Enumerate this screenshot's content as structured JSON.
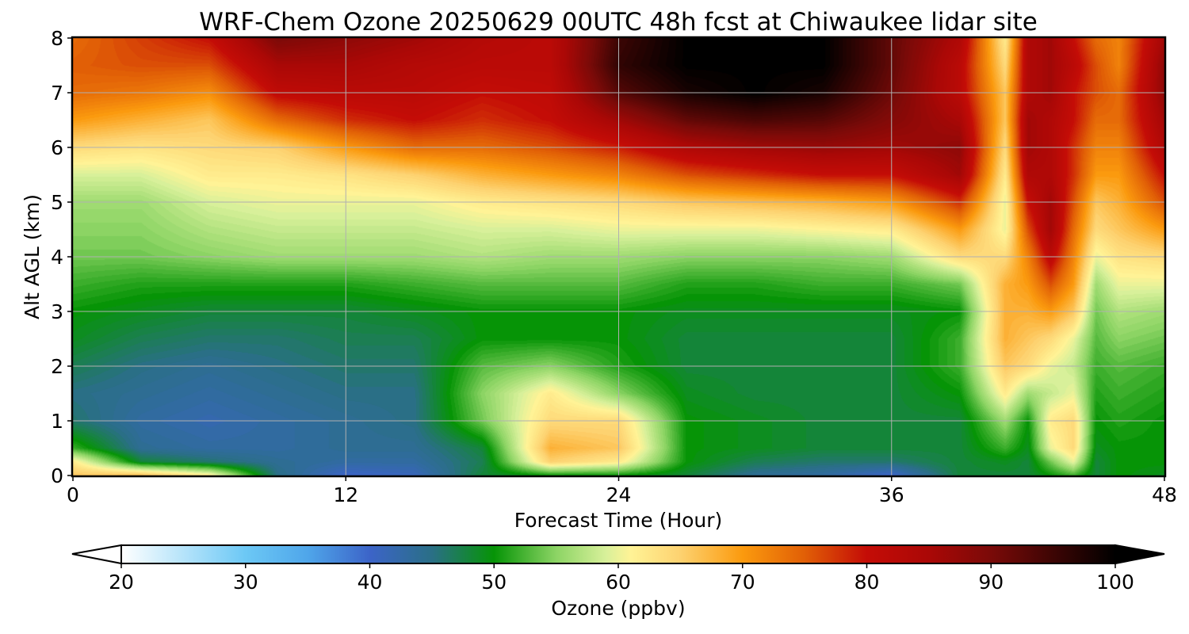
{
  "chart_data": {
    "type": "heatmap",
    "title": "WRF-Chem Ozone  20250629 00UTC 48h fcst at Chiwaukee lidar site",
    "xlabel": "Forecast Time (Hour)",
    "ylabel": "Alt AGL (km)",
    "xlim": [
      0,
      48
    ],
    "ylim": [
      0,
      8
    ],
    "xticks": [
      0,
      12,
      24,
      36,
      48
    ],
    "yticks": [
      0,
      1,
      2,
      3,
      4,
      5,
      6,
      7,
      8
    ],
    "grid": true,
    "x_hours": [
      0,
      3,
      6,
      9,
      12,
      15,
      18,
      21,
      24,
      27,
      30,
      33,
      36,
      39,
      41,
      42,
      43,
      44,
      45,
      46,
      48
    ],
    "z_km": [
      0,
      0.25,
      0.5,
      1,
      1.5,
      2,
      2.5,
      3,
      3.5,
      4,
      4.5,
      5,
      5.5,
      6,
      6.5,
      7,
      7.5,
      8
    ],
    "ozone_ppbv_by_time": [
      [
        66,
        62,
        52,
        46,
        45,
        47,
        49,
        50,
        52,
        54,
        55,
        56,
        59,
        64,
        70,
        74,
        75,
        74
      ],
      [
        67,
        48,
        44,
        43,
        44,
        45,
        47,
        49,
        51,
        54,
        55,
        56,
        59,
        63,
        68,
        73,
        76,
        77
      ],
      [
        62,
        46,
        43,
        42,
        43,
        44,
        46,
        48,
        51,
        55,
        57,
        59,
        62,
        64,
        66,
        71,
        76,
        80
      ],
      [
        45,
        44,
        43,
        43,
        44,
        45,
        46,
        48,
        51,
        56,
        58,
        60,
        62,
        65,
        74,
        81,
        85,
        90
      ],
      [
        40,
        43,
        44,
        44,
        45,
        46,
        47,
        48,
        51,
        56,
        58,
        60,
        63,
        70,
        78,
        82,
        85,
        88
      ],
      [
        41,
        43,
        44,
        45,
        45,
        46,
        47,
        49,
        52,
        56,
        58,
        60,
        65,
        74,
        80,
        82,
        83,
        86
      ],
      [
        48,
        47,
        48,
        54,
        55,
        53,
        50,
        50,
        53,
        57,
        59,
        62,
        68,
        74,
        78,
        80,
        82,
        83
      ],
      [
        50,
        65,
        68,
        64,
        62,
        55,
        50,
        50,
        53,
        56,
        59,
        63,
        70,
        76,
        80,
        81,
        82,
        82
      ],
      [
        50,
        62,
        66,
        64,
        55,
        51,
        50,
        50,
        53,
        56,
        60,
        64,
        72,
        79,
        86,
        93,
        96,
        95
      ],
      [
        48,
        50,
        50,
        50,
        49,
        48,
        48,
        49,
        51,
        55,
        60,
        66,
        76,
        84,
        92,
        98,
        100,
        100
      ],
      [
        44,
        47,
        49,
        49,
        48,
        48,
        48,
        49,
        51,
        55,
        60,
        67,
        78,
        86,
        94,
        100,
        100,
        100
      ],
      [
        43,
        46,
        48,
        48,
        48,
        48,
        48,
        49,
        52,
        55,
        61,
        68,
        80,
        87,
        93,
        98,
        100,
        100
      ],
      [
        40,
        46,
        48,
        48,
        48,
        48,
        48,
        49,
        52,
        56,
        62,
        70,
        80,
        86,
        89,
        91,
        92,
        92
      ],
      [
        48,
        48,
        48,
        48,
        50,
        52,
        52,
        50,
        54,
        64,
        70,
        78,
        86,
        88,
        85,
        82,
        82,
        84
      ],
      [
        48,
        49,
        52,
        56,
        62,
        66,
        68,
        68,
        68,
        64,
        60,
        60,
        62,
        64,
        66,
        66,
        64,
        62
      ],
      [
        48,
        48,
        49,
        50,
        56,
        64,
        66,
        68,
        70,
        72,
        76,
        80,
        84,
        86,
        86,
        84,
        84,
        84
      ],
      [
        50,
        54,
        60,
        62,
        58,
        60,
        64,
        70,
        76,
        82,
        86,
        86,
        84,
        84,
        84,
        86,
        86,
        86
      ],
      [
        52,
        60,
        64,
        64,
        60,
        58,
        60,
        66,
        70,
        72,
        74,
        76,
        78,
        78,
        80,
        80,
        82,
        80
      ],
      [
        48,
        48,
        49,
        50,
        51,
        52,
        53,
        54,
        56,
        60,
        64,
        66,
        70,
        72,
        74,
        76,
        76,
        74
      ],
      [
        50,
        50,
        50,
        51,
        52,
        53,
        55,
        57,
        60,
        63,
        66,
        68,
        70,
        72,
        74,
        74,
        72,
        72
      ],
      [
        49,
        50,
        50,
        50,
        51,
        52,
        54,
        56,
        60,
        64,
        70,
        76,
        80,
        84,
        86,
        88,
        88,
        86
      ]
    ],
    "colorbar": {
      "label": "Ozone  (ppbv)",
      "min": 20,
      "max": 100,
      "ticks": [
        20,
        30,
        40,
        50,
        60,
        70,
        80,
        90,
        100
      ],
      "extend": "both",
      "orientation": "horizontal",
      "placement": "bottom",
      "color_stops": [
        {
          "value": 20,
          "color": "#ffffff"
        },
        {
          "value": 30,
          "color": "#6cc8f5"
        },
        {
          "value": 35,
          "color": "#4fa6ea"
        },
        {
          "value": 40,
          "color": "#3c64c8"
        },
        {
          "value": 45,
          "color": "#2a6f86"
        },
        {
          "value": 50,
          "color": "#069406"
        },
        {
          "value": 55,
          "color": "#8cd464"
        },
        {
          "value": 59,
          "color": "#d8f09a"
        },
        {
          "value": 61,
          "color": "#fff396"
        },
        {
          "value": 65,
          "color": "#fdd270"
        },
        {
          "value": 70,
          "color": "#fb9a0e"
        },
        {
          "value": 75,
          "color": "#e15f06"
        },
        {
          "value": 80,
          "color": "#c40c06"
        },
        {
          "value": 85,
          "color": "#aa0806"
        },
        {
          "value": 90,
          "color": "#7a0a08"
        },
        {
          "value": 100,
          "color": "#000000"
        }
      ]
    }
  }
}
